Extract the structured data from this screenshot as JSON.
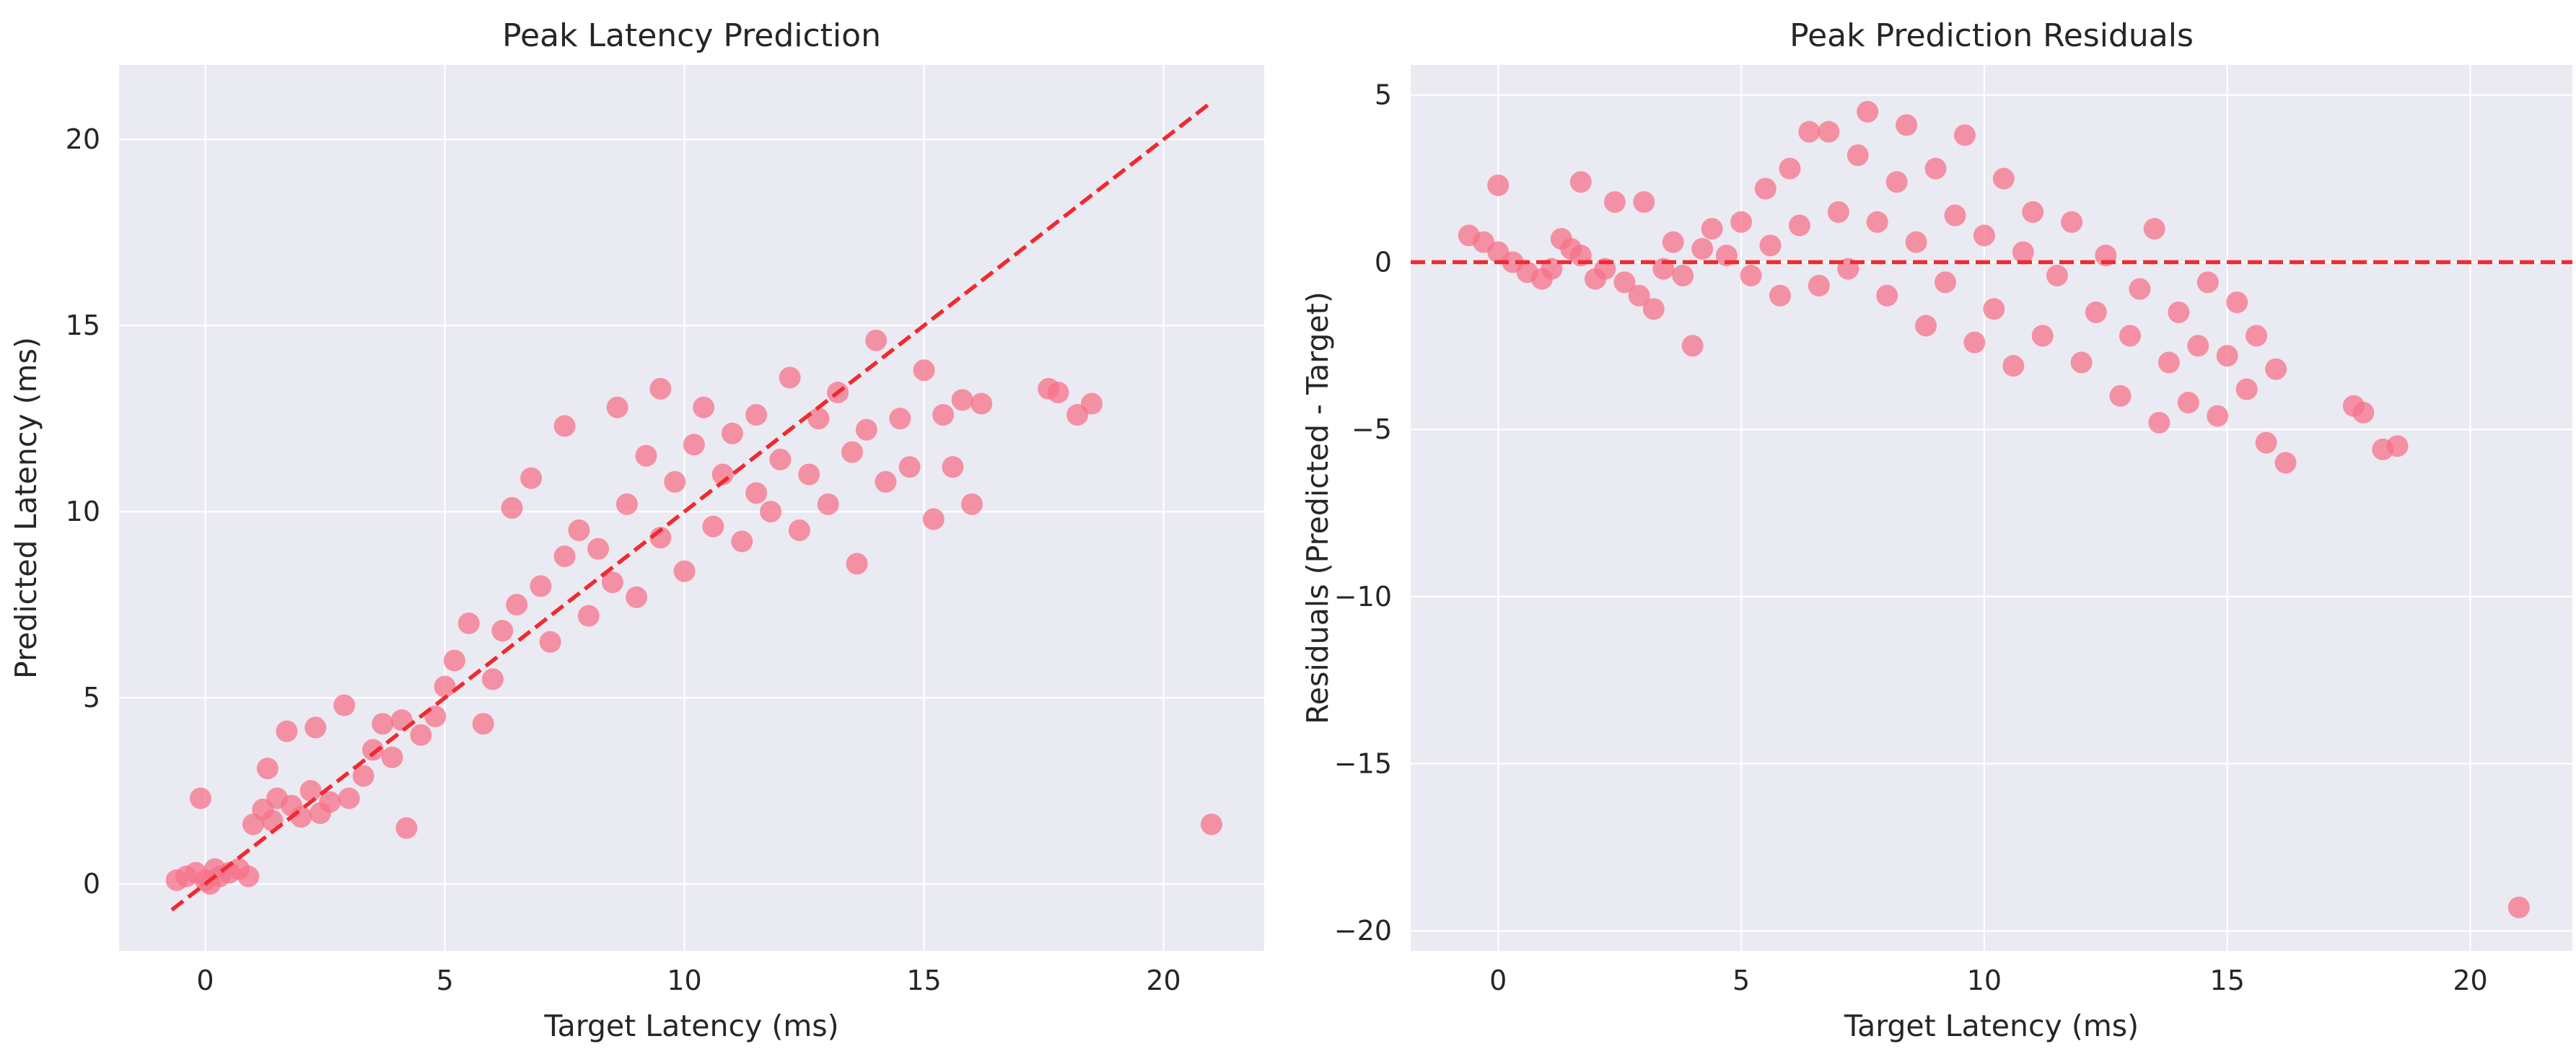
{
  "chart_data": [
    {
      "type": "scatter",
      "title": "Peak Latency Prediction",
      "xlabel": "Target Latency (ms)",
      "ylabel": "Predicted Latency (ms)",
      "xlim": [
        -1.8,
        22.1
      ],
      "ylim": [
        -1.8,
        22.0
      ],
      "xticks": [
        0,
        5,
        10,
        15,
        20
      ],
      "yticks": [
        0,
        5,
        10,
        15,
        20
      ],
      "grid": true,
      "point_color": "#f77189",
      "reference_line": {
        "type": "identity",
        "x": [
          -0.7,
          21.0
        ],
        "y": [
          -0.7,
          21.0
        ],
        "color": "#f02a2f",
        "style": "dashed"
      },
      "points": [
        [
          -0.6,
          0.1
        ],
        [
          -0.4,
          0.2
        ],
        [
          -0.2,
          0.3
        ],
        [
          0.0,
          0.1
        ],
        [
          0.2,
          0.4
        ],
        [
          0.3,
          0.2
        ],
        [
          0.5,
          0.3
        ],
        [
          0.7,
          0.4
        ],
        [
          0.9,
          0.2
        ],
        [
          0.1,
          0.0
        ],
        [
          -0.1,
          2.3
        ],
        [
          1.0,
          1.6
        ],
        [
          1.2,
          2.0
        ],
        [
          1.4,
          1.7
        ],
        [
          1.5,
          2.3
        ],
        [
          1.8,
          2.1
        ],
        [
          2.0,
          1.8
        ],
        [
          2.2,
          2.5
        ],
        [
          2.4,
          1.9
        ],
        [
          2.6,
          2.2
        ],
        [
          1.3,
          3.1
        ],
        [
          1.7,
          4.1
        ],
        [
          2.3,
          4.2
        ],
        [
          2.9,
          4.8
        ],
        [
          3.0,
          2.3
        ],
        [
          3.3,
          2.9
        ],
        [
          3.5,
          3.6
        ],
        [
          3.7,
          4.3
        ],
        [
          3.9,
          3.4
        ],
        [
          4.1,
          4.4
        ],
        [
          4.2,
          1.5
        ],
        [
          4.5,
          4.0
        ],
        [
          4.8,
          4.5
        ],
        [
          5.0,
          5.3
        ],
        [
          5.2,
          6.0
        ],
        [
          5.5,
          7.0
        ],
        [
          5.8,
          4.3
        ],
        [
          6.0,
          5.5
        ],
        [
          6.2,
          6.8
        ],
        [
          6.5,
          7.5
        ],
        [
          6.4,
          10.1
        ],
        [
          6.8,
          10.9
        ],
        [
          7.0,
          8.0
        ],
        [
          7.2,
          6.5
        ],
        [
          7.5,
          8.8
        ],
        [
          7.5,
          12.3
        ],
        [
          7.8,
          9.5
        ],
        [
          8.0,
          7.2
        ],
        [
          8.2,
          9.0
        ],
        [
          8.5,
          8.1
        ],
        [
          8.6,
          12.8
        ],
        [
          8.8,
          10.2
        ],
        [
          9.0,
          7.7
        ],
        [
          9.2,
          11.5
        ],
        [
          9.5,
          9.3
        ],
        [
          9.5,
          13.3
        ],
        [
          9.8,
          10.8
        ],
        [
          10.0,
          8.4
        ],
        [
          10.2,
          11.8
        ],
        [
          10.4,
          12.8
        ],
        [
          10.6,
          9.6
        ],
        [
          10.8,
          11.0
        ],
        [
          11.0,
          12.1
        ],
        [
          11.2,
          9.2
        ],
        [
          11.5,
          12.6
        ],
        [
          11.5,
          10.5
        ],
        [
          11.8,
          10.0
        ],
        [
          12.0,
          11.4
        ],
        [
          12.2,
          13.6
        ],
        [
          12.4,
          9.5
        ],
        [
          12.6,
          11.0
        ],
        [
          12.8,
          12.5
        ],
        [
          13.0,
          10.2
        ],
        [
          13.2,
          13.2
        ],
        [
          13.5,
          11.6
        ],
        [
          13.6,
          8.6
        ],
        [
          13.8,
          12.2
        ],
        [
          14.0,
          14.6
        ],
        [
          14.2,
          10.8
        ],
        [
          14.5,
          12.5
        ],
        [
          14.7,
          11.2
        ],
        [
          15.0,
          13.8
        ],
        [
          15.2,
          9.8
        ],
        [
          15.4,
          12.6
        ],
        [
          15.6,
          11.2
        ],
        [
          15.8,
          13.0
        ],
        [
          16.0,
          10.2
        ],
        [
          16.2,
          12.9
        ],
        [
          17.6,
          13.3
        ],
        [
          17.8,
          13.2
        ],
        [
          18.2,
          12.6
        ],
        [
          18.5,
          12.9
        ],
        [
          21.0,
          1.6
        ]
      ]
    },
    {
      "type": "scatter",
      "title": "Peak Prediction Residuals",
      "xlabel": "Target Latency (ms)",
      "ylabel": "Residuals (Predicted - Target)",
      "xlim": [
        -1.8,
        22.1
      ],
      "ylim": [
        -20.6,
        5.9
      ],
      "xticks": [
        0,
        5,
        10,
        15,
        20
      ],
      "yticks": [
        -20,
        -15,
        -10,
        -5,
        0,
        5
      ],
      "grid": true,
      "point_color": "#f77189",
      "reference_line": {
        "type": "horizontal",
        "y": 0,
        "color": "#f02a2f",
        "style": "dashed"
      },
      "points": [
        [
          -0.6,
          0.8
        ],
        [
          -0.3,
          0.6
        ],
        [
          0.0,
          0.3
        ],
        [
          0.0,
          2.3
        ],
        [
          0.3,
          0.0
        ],
        [
          0.6,
          -0.3
        ],
        [
          0.9,
          -0.5
        ],
        [
          1.1,
          -0.2
        ],
        [
          1.3,
          0.7
        ],
        [
          1.5,
          0.4
        ],
        [
          1.7,
          0.2
        ],
        [
          1.7,
          2.4
        ],
        [
          2.0,
          -0.5
        ],
        [
          2.2,
          -0.2
        ],
        [
          2.4,
          1.8
        ],
        [
          2.6,
          -0.6
        ],
        [
          2.9,
          -1.0
        ],
        [
          3.0,
          1.8
        ],
        [
          3.2,
          -1.4
        ],
        [
          3.4,
          -0.2
        ],
        [
          3.6,
          0.6
        ],
        [
          3.8,
          -0.4
        ],
        [
          4.0,
          -2.5
        ],
        [
          4.2,
          0.4
        ],
        [
          4.4,
          1.0
        ],
        [
          4.7,
          0.2
        ],
        [
          5.0,
          1.2
        ],
        [
          5.2,
          -0.4
        ],
        [
          5.5,
          2.2
        ],
        [
          5.6,
          0.5
        ],
        [
          5.8,
          -1.0
        ],
        [
          6.0,
          2.8
        ],
        [
          6.2,
          1.1
        ],
        [
          6.4,
          3.9
        ],
        [
          6.6,
          -0.7
        ],
        [
          6.8,
          3.9
        ],
        [
          7.0,
          1.5
        ],
        [
          7.2,
          -0.2
        ],
        [
          7.4,
          3.2
        ],
        [
          7.6,
          4.5
        ],
        [
          7.8,
          1.2
        ],
        [
          8.0,
          -1.0
        ],
        [
          8.2,
          2.4
        ],
        [
          8.4,
          4.1
        ],
        [
          8.6,
          0.6
        ],
        [
          8.8,
          -1.9
        ],
        [
          9.0,
          2.8
        ],
        [
          9.2,
          -0.6
        ],
        [
          9.4,
          1.4
        ],
        [
          9.6,
          3.8
        ],
        [
          9.8,
          -2.4
        ],
        [
          10.0,
          0.8
        ],
        [
          10.2,
          -1.4
        ],
        [
          10.4,
          2.5
        ],
        [
          10.6,
          -3.1
        ],
        [
          10.8,
          0.3
        ],
        [
          11.0,
          1.5
        ],
        [
          11.2,
          -2.2
        ],
        [
          11.5,
          -0.4
        ],
        [
          11.8,
          1.2
        ],
        [
          12.0,
          -3.0
        ],
        [
          12.3,
          -1.5
        ],
        [
          12.5,
          0.2
        ],
        [
          12.8,
          -4.0
        ],
        [
          13.0,
          -2.2
        ],
        [
          13.2,
          -0.8
        ],
        [
          13.5,
          1.0
        ],
        [
          13.6,
          -4.8
        ],
        [
          13.8,
          -3.0
        ],
        [
          14.0,
          -1.5
        ],
        [
          14.2,
          -4.2
        ],
        [
          14.4,
          -2.5
        ],
        [
          14.6,
          -0.6
        ],
        [
          14.8,
          -4.6
        ],
        [
          15.0,
          -2.8
        ],
        [
          15.2,
          -1.2
        ],
        [
          15.4,
          -3.8
        ],
        [
          15.6,
          -2.2
        ],
        [
          15.8,
          -5.4
        ],
        [
          16.0,
          -3.2
        ],
        [
          16.2,
          -6.0
        ],
        [
          17.6,
          -4.3
        ],
        [
          17.8,
          -4.5
        ],
        [
          18.2,
          -5.6
        ],
        [
          18.5,
          -5.5
        ],
        [
          21.0,
          -19.3
        ]
      ]
    }
  ]
}
